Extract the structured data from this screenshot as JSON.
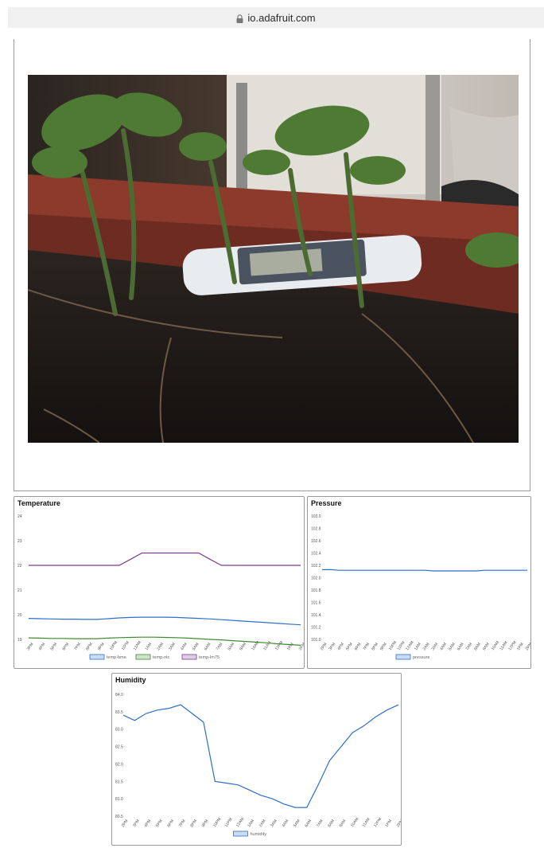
{
  "browser": {
    "url": "io.adafruit.com",
    "lock_icon": "lock-icon"
  },
  "colors": {
    "blue": "#2f6fc9",
    "green": "#3f8a2f",
    "purple": "#7a3d8f"
  },
  "chart_data": [
    {
      "type": "line",
      "title": "Temperature",
      "ylim": [
        19,
        24
      ],
      "yticks": [
        "24",
        "23",
        "22",
        "21",
        "20",
        "19"
      ],
      "xticks": [
        "3PM",
        "4PM",
        "5PM",
        "6PM",
        "7PM",
        "8PM",
        "9PM",
        "10PM",
        "11PM",
        "12AM",
        "1AM",
        "2AM",
        "3AM",
        "4AM",
        "5AM",
        "6AM",
        "7AM",
        "8AM",
        "9AM",
        "10AM",
        "11AM",
        "12PM",
        "1PM",
        "2PM"
      ],
      "series": [
        {
          "name": "temp-bme",
          "color": "#2f6fc9",
          "values": [
            19.85,
            19.84,
            19.83,
            19.82,
            19.82,
            19.81,
            19.81,
            19.84,
            19.87,
            19.89,
            19.9,
            19.9,
            19.9,
            19.89,
            19.87,
            19.85,
            19.83,
            19.8,
            19.77,
            19.74,
            19.71,
            19.68,
            19.65,
            19.62,
            19.59
          ]
        },
        {
          "name": "temp-ntc",
          "color": "#3f8a2f",
          "values": [
            19.06,
            19.05,
            19.04,
            19.04,
            19.03,
            19.03,
            19.03,
            19.05,
            19.07,
            19.08,
            19.09,
            19.09,
            19.08,
            19.07,
            19.05,
            19.03,
            19.0,
            18.98,
            18.95,
            18.92,
            18.89,
            18.86,
            18.82,
            18.79,
            18.76
          ]
        },
        {
          "name": "temp-lm75",
          "color": "#7a3d8f",
          "values": [
            22.0,
            22.0,
            22.0,
            22.0,
            22.0,
            22.0,
            22.0,
            22.0,
            22.0,
            22.25,
            22.5,
            22.5,
            22.5,
            22.5,
            22.5,
            22.5,
            22.25,
            22.0,
            22.0,
            22.0,
            22.0,
            22.0,
            22.0,
            22.0,
            22.0
          ]
        }
      ]
    },
    {
      "type": "line",
      "title": "Pressure",
      "ylim": [
        101.0,
        103.0
      ],
      "yticks": [
        "103.0",
        "102.8",
        "102.6",
        "102.4",
        "102.2",
        "102.0",
        "101.8",
        "101.6",
        "101.4",
        "101.2",
        "101.0"
      ],
      "xticks": [
        "2PM",
        "3PM",
        "4PM",
        "5PM",
        "6PM",
        "7PM",
        "8PM",
        "9PM",
        "10PM",
        "11PM",
        "12AM",
        "1AM",
        "2AM",
        "3AM",
        "4AM",
        "5AM",
        "6AM",
        "7AM",
        "8AM",
        "9AM",
        "10AM",
        "11AM",
        "12PM",
        "1PM",
        "2PM"
      ],
      "series": [
        {
          "name": "pressure",
          "color": "#2f6fc9",
          "values": [
            102.13,
            102.13,
            102.12,
            102.12,
            102.12,
            102.12,
            102.12,
            102.12,
            102.12,
            102.12,
            102.12,
            102.12,
            102.12,
            102.11,
            102.11,
            102.11,
            102.11,
            102.11,
            102.11,
            102.12,
            102.12,
            102.12,
            102.12,
            102.12,
            102.12
          ]
        }
      ]
    },
    {
      "type": "line",
      "title": "Humidity",
      "ylim": [
        80.5,
        84.0
      ],
      "yticks": [
        "84.0",
        "83.5",
        "83.0",
        "82.5",
        "82.0",
        "81.5",
        "81.0",
        "80.5"
      ],
      "xticks": [
        "2PM",
        "3PM",
        "4PM",
        "5PM",
        "6PM",
        "7PM",
        "8PM",
        "9PM",
        "10PM",
        "11PM",
        "12AM",
        "1AM",
        "2AM",
        "3AM",
        "4AM",
        "5AM",
        "6AM",
        "7AM",
        "8AM",
        "9AM",
        "10AM",
        "11AM",
        "12PM",
        "1PM",
        "2PM"
      ],
      "series": [
        {
          "name": "humidity",
          "color": "#2f6fc9",
          "values": [
            83.4,
            83.25,
            83.45,
            83.55,
            83.6,
            83.7,
            83.45,
            83.2,
            81.5,
            81.45,
            81.4,
            81.25,
            81.1,
            81.0,
            80.85,
            80.75,
            80.75,
            81.4,
            82.1,
            82.5,
            82.9,
            83.1,
            83.35,
            83.55,
            83.7
          ]
        }
      ]
    }
  ]
}
